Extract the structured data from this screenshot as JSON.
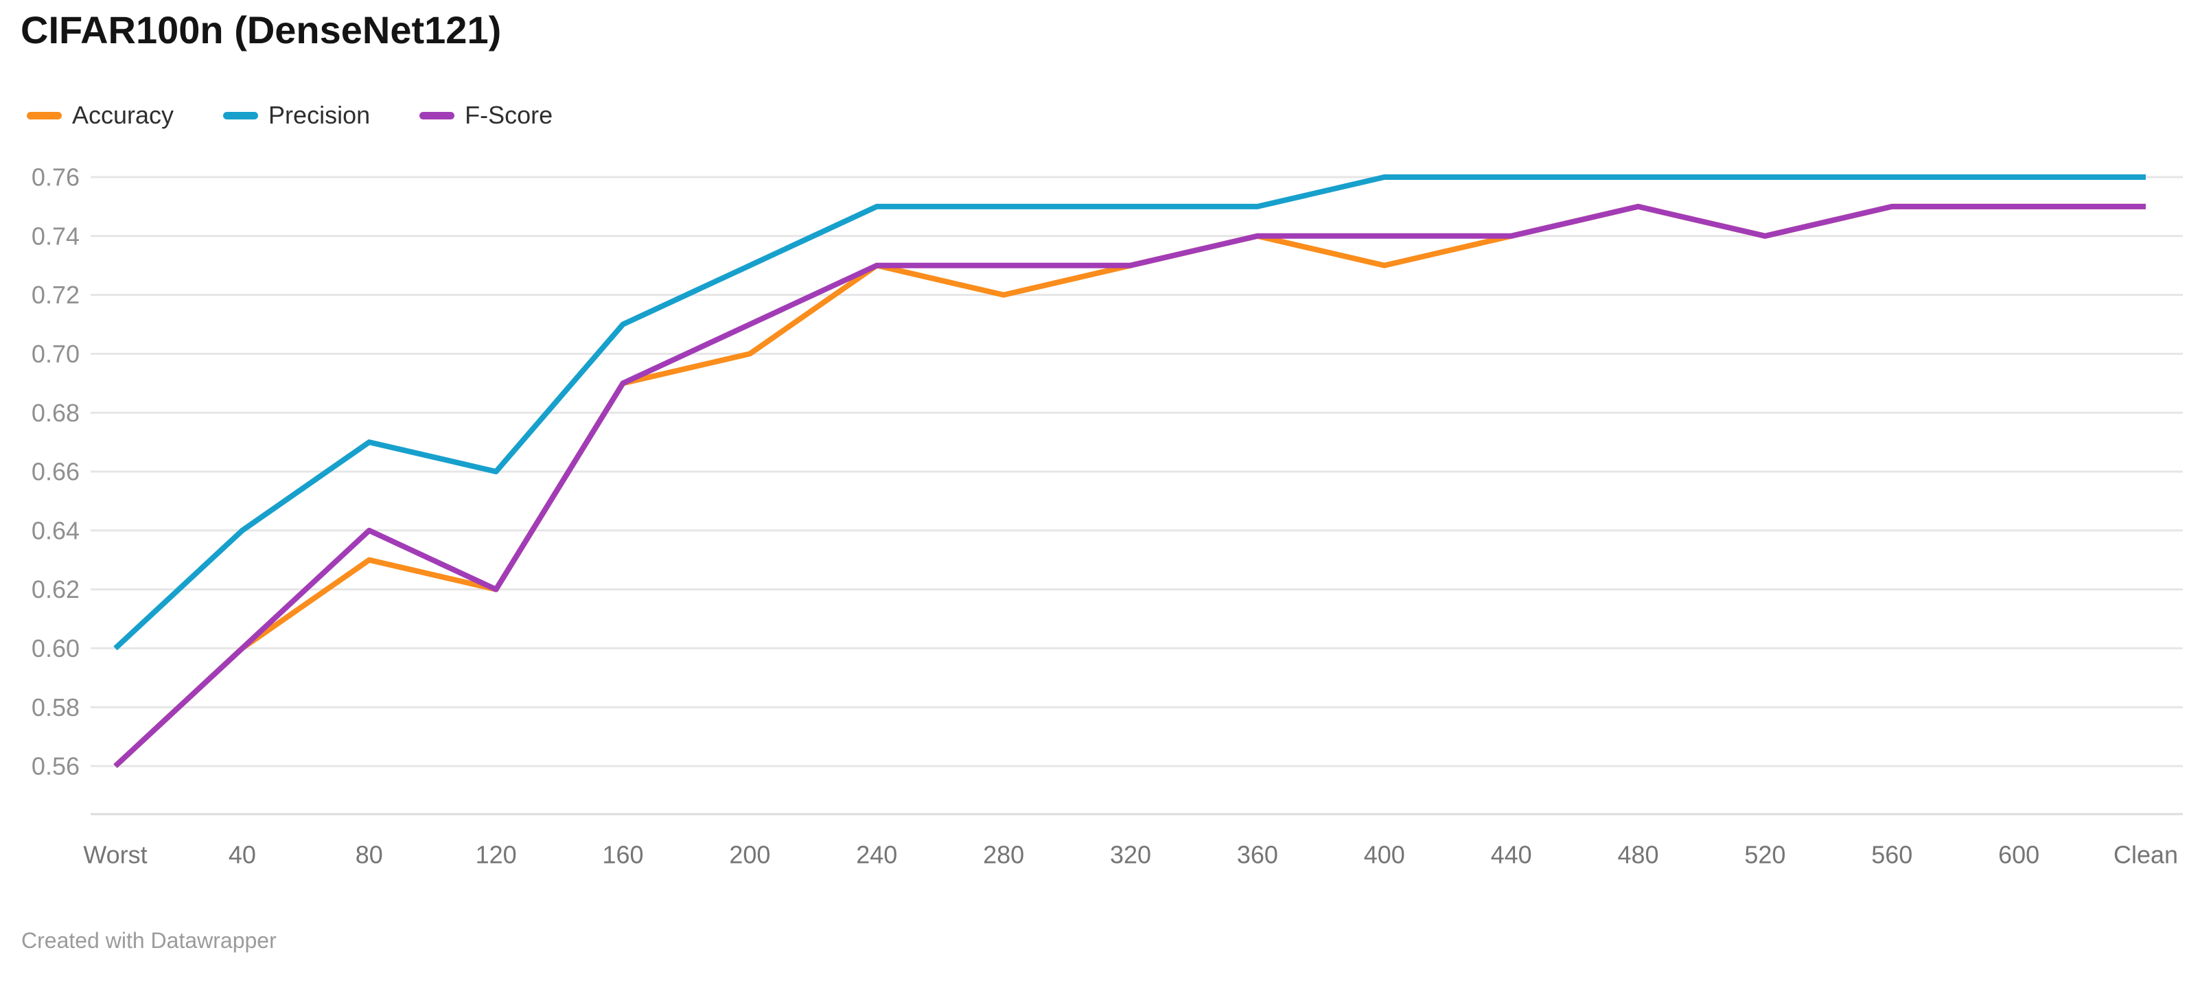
{
  "header": {
    "title": "CIFAR100n (DenseNet121)"
  },
  "footer": {
    "credit": "Created with Datawrapper"
  },
  "chart_data": {
    "type": "line",
    "title": "CIFAR100n (DenseNet121)",
    "categories": [
      "Worst",
      "40",
      "80",
      "120",
      "160",
      "200",
      "240",
      "280",
      "320",
      "360",
      "400",
      "440",
      "480",
      "520",
      "560",
      "600",
      "Clean"
    ],
    "series": [
      {
        "name": "Accuracy",
        "color": "#FA8D1C",
        "values": [
          0.56,
          0.6,
          0.63,
          0.62,
          0.69,
          0.7,
          0.73,
          0.72,
          0.73,
          0.74,
          0.73,
          0.74,
          0.75,
          0.74,
          0.75,
          0.75,
          0.75
        ]
      },
      {
        "name": "Precision",
        "color": "#17A0CC",
        "values": [
          0.6,
          0.64,
          0.67,
          0.66,
          0.71,
          0.73,
          0.75,
          0.75,
          0.75,
          0.75,
          0.76,
          0.76,
          0.76,
          0.76,
          0.76,
          0.76,
          0.76
        ]
      },
      {
        "name": "F-Score",
        "color": "#A23CB6",
        "values": [
          0.56,
          0.6,
          0.64,
          0.62,
          0.69,
          0.71,
          0.73,
          0.73,
          0.73,
          0.74,
          0.74,
          0.74,
          0.75,
          0.74,
          0.75,
          0.75,
          0.75
        ]
      }
    ],
    "ylim": [
      0.56,
      0.76
    ],
    "ytick_step": 0.02,
    "ytick_labels": [
      "0.76",
      "0.74",
      "0.72",
      "0.70",
      "0.68",
      "0.66",
      "0.64",
      "0.62",
      "0.60",
      "0.58",
      "0.56"
    ],
    "grid": true,
    "legend_position": "top-left",
    "line_width": 8,
    "colors": {
      "background": "#FFFFFF",
      "gridline": "#E6E6E6",
      "axis_baseline": "#DCDCDC",
      "y_tick_label": "#8F8F8F",
      "x_tick_label": "#757575",
      "title": "#141414",
      "legend_text": "#2E2E2E",
      "credit": "#9B9B9B"
    }
  }
}
